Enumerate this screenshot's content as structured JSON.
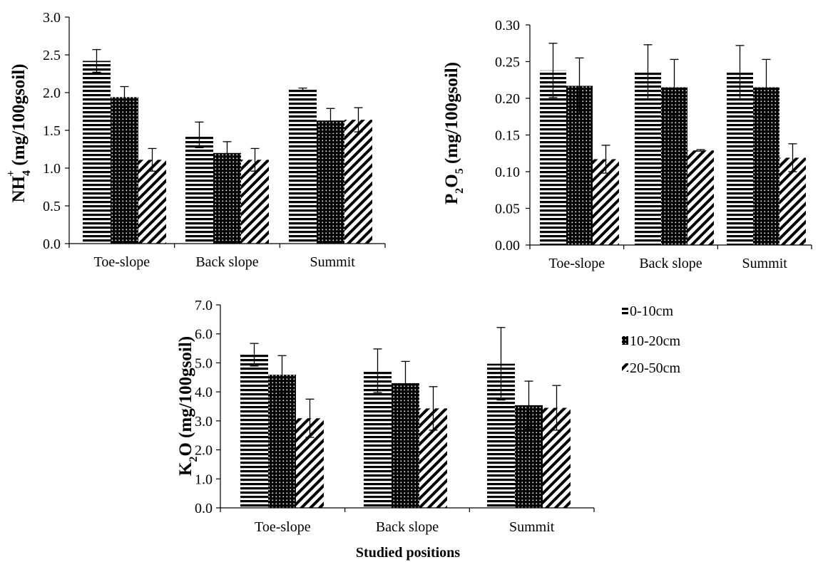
{
  "figure": {
    "x_axis_title": "Studied positions",
    "legend": [
      "0-10cm",
      "10-20cm",
      "20-50cm"
    ]
  },
  "chart_data": [
    {
      "type": "bar",
      "ylabel": "NH4+ (mg/100gsoil)",
      "ylabel_parts": {
        "base": "NH",
        "sub": "4",
        "sup": "+",
        "rest": " (mg/100gsoil)"
      },
      "categories": [
        "Toe-slope",
        "Back slope",
        "Summit"
      ],
      "ylim": [
        0,
        3.0
      ],
      "yticks": [
        "0.0",
        "0.5",
        "1.0",
        "1.5",
        "2.0",
        "2.5",
        "3.0"
      ],
      "series": [
        {
          "name": "0-10cm",
          "values": [
            2.42,
            1.44,
            2.04
          ],
          "errors": [
            0.15,
            0.17,
            0.02
          ]
        },
        {
          "name": "10-20cm",
          "values": [
            1.94,
            1.2,
            1.63
          ],
          "errors": [
            0.14,
            0.15,
            0.16
          ]
        },
        {
          "name": "20-50cm",
          "values": [
            1.11,
            1.11,
            1.64
          ],
          "errors": [
            0.15,
            0.15,
            0.16
          ]
        }
      ]
    },
    {
      "type": "bar",
      "ylabel": "P2O5 (mg/100gsoil)",
      "ylabel_parts": {
        "base": "P",
        "sub": "2",
        "base2": "O",
        "sub2": "5",
        "rest": " (mg/100gsoil)"
      },
      "categories": [
        "Toe-slope",
        "Back slope",
        "Summit"
      ],
      "ylim": [
        0,
        0.3
      ],
      "yticks": [
        "0.00",
        "0.05",
        "0.10",
        "0.15",
        "0.20",
        "0.25",
        "0.30"
      ],
      "series": [
        {
          "name": "0-10cm",
          "values": [
            0.238,
            0.236,
            0.235
          ],
          "errors": [
            0.037,
            0.037,
            0.037
          ]
        },
        {
          "name": "10-20cm",
          "values": [
            0.217,
            0.215,
            0.215
          ],
          "errors": [
            0.038,
            0.038,
            0.038
          ]
        },
        {
          "name": "20-50cm",
          "values": [
            0.117,
            0.129,
            0.119
          ],
          "errors": [
            0.019,
            0.001,
            0.019
          ]
        }
      ]
    },
    {
      "type": "bar",
      "ylabel": "K2O (mg/100gsoil)",
      "ylabel_parts": {
        "base": "K",
        "sub": "2",
        "base2": "O",
        "rest": " (mg/100gsoil)"
      },
      "categories": [
        "Toe-slope",
        "Back slope",
        "Summit"
      ],
      "ylim": [
        0,
        7.0
      ],
      "yticks": [
        "0.0",
        "1.0",
        "2.0",
        "3.0",
        "4.0",
        "5.0",
        "6.0",
        "7.0"
      ],
      "xlabel": "Studied positions",
      "series": [
        {
          "name": "0-10cm",
          "values": [
            5.28,
            4.73,
            4.97
          ],
          "errors": [
            0.39,
            0.75,
            1.25
          ]
        },
        {
          "name": "10-20cm",
          "values": [
            4.59,
            4.3,
            3.54
          ],
          "errors": [
            0.66,
            0.75,
            0.83
          ]
        },
        {
          "name": "20-50cm",
          "values": [
            3.09,
            3.43,
            3.45
          ],
          "errors": [
            0.66,
            0.75,
            0.77
          ]
        }
      ]
    }
  ]
}
